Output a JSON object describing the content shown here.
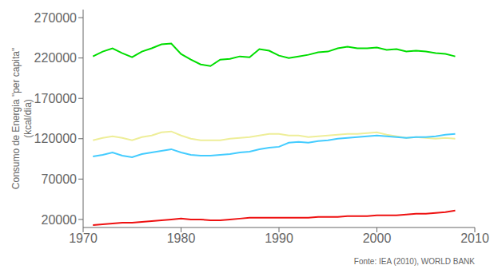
{
  "chart_data": {
    "type": "line",
    "ylabel": "Consumo de Energia \"per capita\"\n(kcal/dia)",
    "annotation": "Fonte: IEA (2010), WORLD BANK",
    "x": [
      1971,
      1972,
      1973,
      1974,
      1975,
      1976,
      1977,
      1978,
      1979,
      1980,
      1981,
      1982,
      1983,
      1984,
      1985,
      1986,
      1987,
      1988,
      1989,
      1990,
      1991,
      1992,
      1993,
      1994,
      1995,
      1996,
      1997,
      1998,
      1999,
      2000,
      2001,
      2002,
      2003,
      2004,
      2005,
      2006,
      2007,
      2008
    ],
    "series": [
      {
        "color": "#00dd00",
        "values": [
          222000,
          228000,
          232000,
          226000,
          221000,
          228000,
          232000,
          237000,
          238000,
          225000,
          218000,
          212000,
          210000,
          218000,
          219000,
          222000,
          221000,
          231000,
          229000,
          223000,
          220000,
          222000,
          224000,
          227000,
          228000,
          232000,
          234000,
          232000,
          232000,
          233000,
          230000,
          231000,
          228000,
          229000,
          228000,
          226000,
          225000,
          222000
        ]
      },
      {
        "color": "#eeee99",
        "values": [
          118000,
          121000,
          123000,
          121000,
          118000,
          122000,
          124000,
          128000,
          129000,
          124000,
          120000,
          118000,
          118000,
          118000,
          120000,
          121000,
          122000,
          124000,
          126000,
          126000,
          124000,
          124000,
          122000,
          123000,
          124000,
          125000,
          126000,
          126000,
          127000,
          128000,
          125000,
          123000,
          121000,
          122000,
          121000,
          120000,
          121000,
          120000
        ]
      },
      {
        "color": "#44ccff",
        "values": [
          98000,
          100000,
          103000,
          99000,
          97000,
          101000,
          103000,
          105000,
          107000,
          103000,
          100000,
          99000,
          99000,
          100000,
          101000,
          103000,
          104000,
          107000,
          109000,
          110000,
          115000,
          116000,
          115000,
          117000,
          118000,
          120000,
          121000,
          122000,
          123000,
          124000,
          123000,
          122000,
          121000,
          122000,
          122000,
          123000,
          125000,
          126000
        ]
      },
      {
        "color": "#ee1111",
        "values": [
          13000,
          14000,
          15000,
          16000,
          16000,
          17000,
          18000,
          19000,
          20000,
          21000,
          20000,
          20000,
          19000,
          19000,
          20000,
          21000,
          22000,
          22000,
          22000,
          22000,
          22000,
          22000,
          22000,
          23000,
          23000,
          23000,
          24000,
          24000,
          24000,
          25000,
          25000,
          25000,
          26000,
          27000,
          27000,
          28000,
          29000,
          31000
        ]
      }
    ],
    "xlim": [
      1970,
      2010
    ],
    "xticks": [
      1970,
      1980,
      1990,
      2000,
      2010
    ],
    "ylim": [
      10000,
      280000
    ],
    "yticks": [
      20000,
      70000,
      120000,
      170000,
      220000,
      270000
    ],
    "grid": false
  }
}
